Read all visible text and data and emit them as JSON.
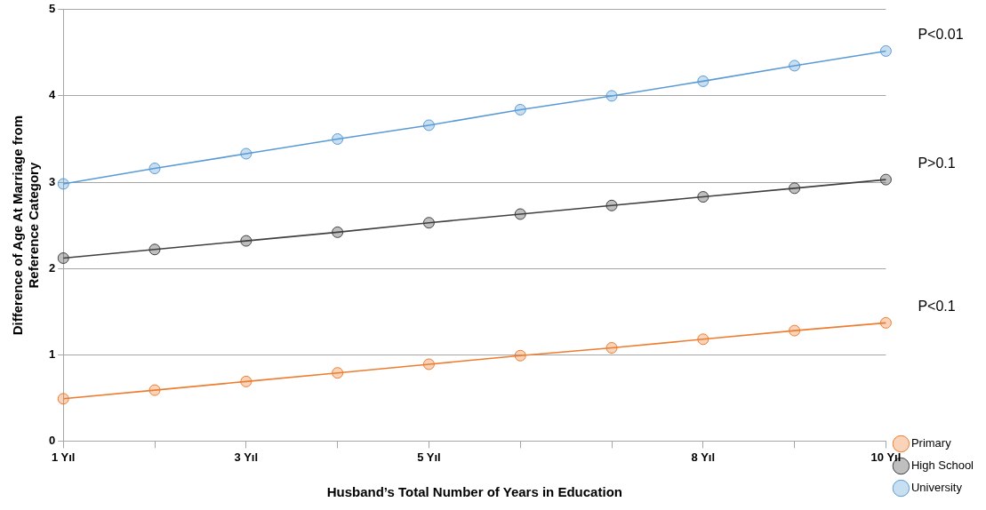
{
  "chart_data": {
    "type": "line",
    "xlabel": "Husband’s Total Number of Years in Education",
    "ylabel": "Difference of Age At Marriage from Reference Category",
    "categories": [
      "1 Yıl",
      null,
      "3 Yıl",
      null,
      "5 Yıl",
      null,
      null,
      "8 Yıl",
      null,
      "10 Yıl"
    ],
    "series": [
      {
        "name": "Primary",
        "color": "#ed7d31",
        "values": [
          0.49,
          0.59,
          0.69,
          0.79,
          0.89,
          0.99,
          1.08,
          1.18,
          1.28,
          1.37
        ]
      },
      {
        "name": "High School",
        "color": "#404040",
        "values": [
          2.12,
          2.22,
          2.32,
          2.42,
          2.53,
          2.63,
          2.73,
          2.83,
          2.93,
          3.03
        ]
      },
      {
        "name": "University",
        "color": "#5b9bd5",
        "values": [
          2.98,
          3.16,
          3.33,
          3.5,
          3.66,
          3.84,
          4.0,
          4.17,
          4.35,
          4.52
        ]
      }
    ],
    "ylim": [
      0,
      5
    ],
    "yticks": [
      0,
      1,
      2,
      3,
      4,
      5
    ],
    "grid": "y",
    "legend": "bottom right",
    "marker": "circle",
    "line_style": "solid",
    "annotations": [
      "P<0.01",
      "P>0.1",
      "P<0.1"
    ]
  }
}
